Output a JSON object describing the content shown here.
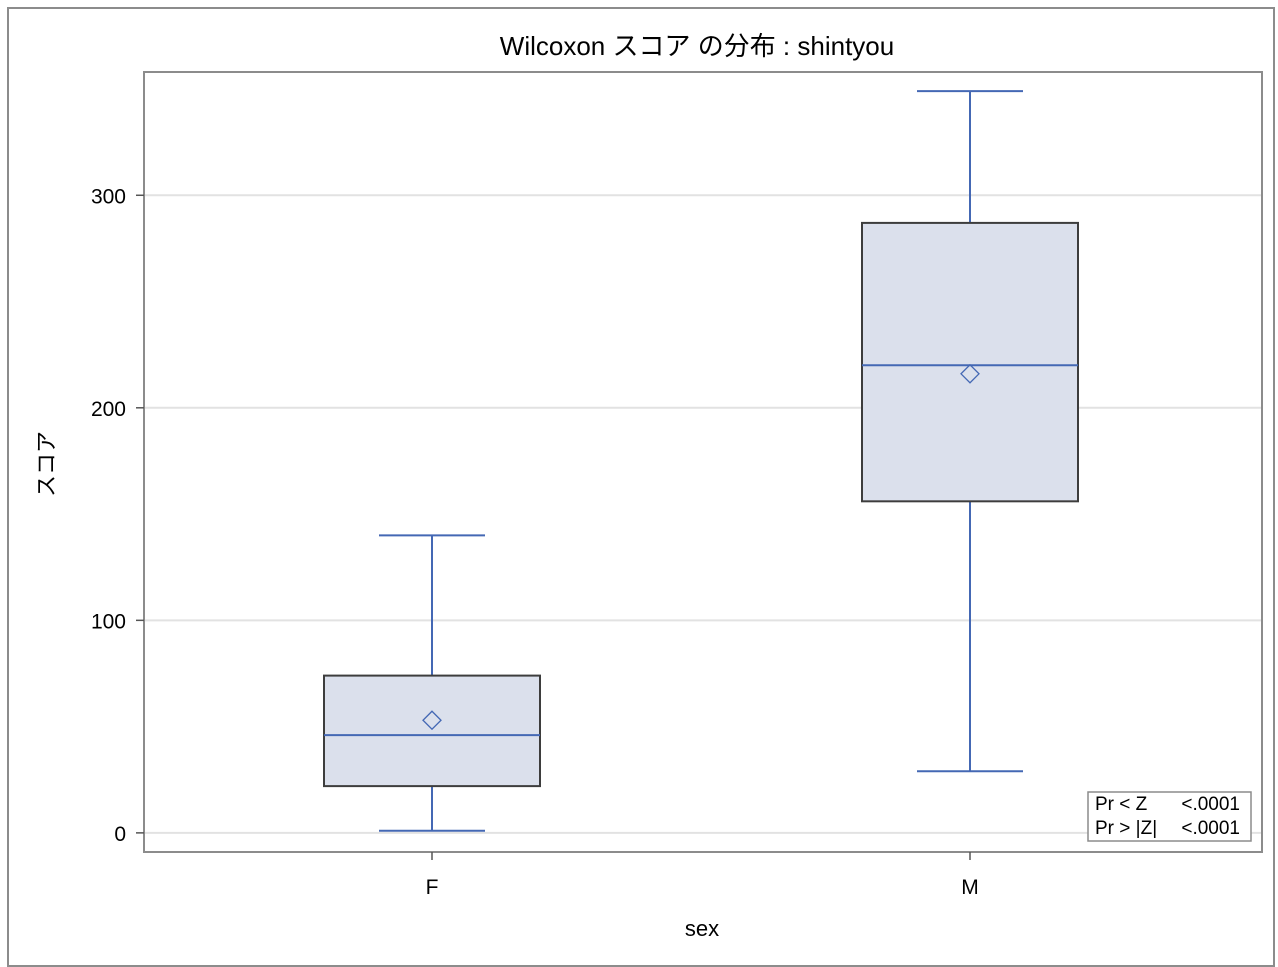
{
  "chart_data": {
    "type": "box",
    "title": "Wilcoxon スコア の分布 : shintyou",
    "xlabel": "sex",
    "ylabel": "スコア",
    "categories": [
      "F",
      "M"
    ],
    "ylim": [
      -9,
      358
    ],
    "yticks": [
      0,
      100,
      200,
      300
    ],
    "grid": true,
    "boxes": [
      {
        "category": "F",
        "whisker_low": 1,
        "q1": 22,
        "median": 46,
        "q3": 74,
        "whisker_high": 140,
        "mean": 53
      },
      {
        "category": "M",
        "whisker_low": 29,
        "q1": 156,
        "median": 220,
        "q3": 287,
        "whisker_high": 349,
        "mean": 216
      }
    ],
    "inset_table": [
      {
        "label": "Pr < Z",
        "value": "<.0001"
      },
      {
        "label": "Pr > |Z|",
        "value": "<.0001"
      }
    ],
    "colors": {
      "box_fill": "#dbe0ec",
      "box_border": "#3d3d3d",
      "whisker": "#4468b4",
      "median": "#4468b4",
      "mean_marker": "#4468b4",
      "grid": "#e2e2e2",
      "wall": "#8c8c8c"
    }
  }
}
